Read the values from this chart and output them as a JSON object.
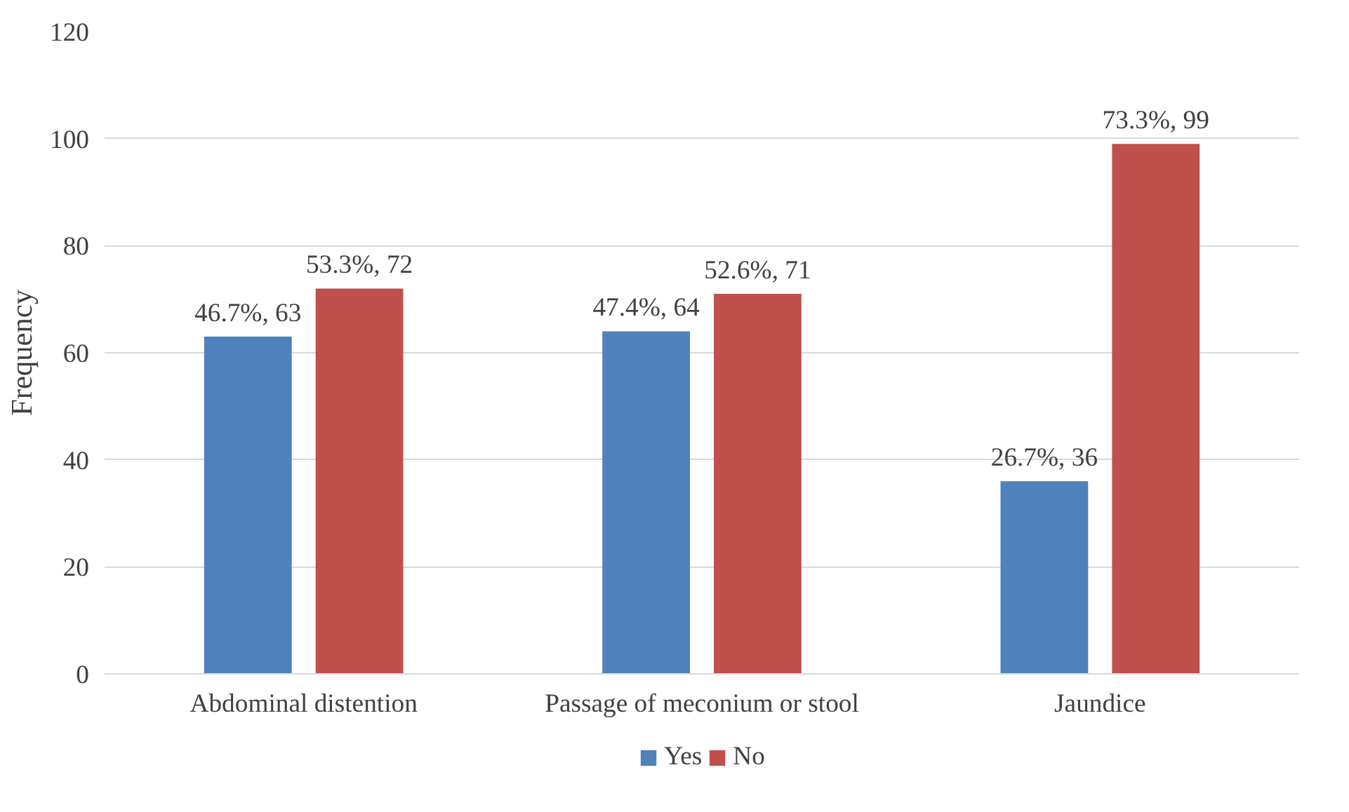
{
  "chart_data": {
    "type": "bar",
    "ylabel": "Frequency",
    "categories": [
      "Abdominal distention",
      "Passage of meconium or stool",
      "Jaundice"
    ],
    "series": [
      {
        "name": "Yes",
        "color": "#4f81bd",
        "values": [
          63,
          64,
          36
        ],
        "value_labels": [
          "46.7%, 63",
          "47.4%, 64",
          "26.7%, 36"
        ]
      },
      {
        "name": "No",
        "color": "#c0504d",
        "values": [
          72,
          71,
          99
        ],
        "value_labels": [
          "53.3%, 72",
          "52.6%, 71",
          "73.3%, 99"
        ]
      }
    ],
    "ylim": [
      0,
      120
    ],
    "yticks": [
      0,
      20,
      40,
      60,
      80,
      100,
      120
    ],
    "grid": "y",
    "legend": "bottom"
  }
}
